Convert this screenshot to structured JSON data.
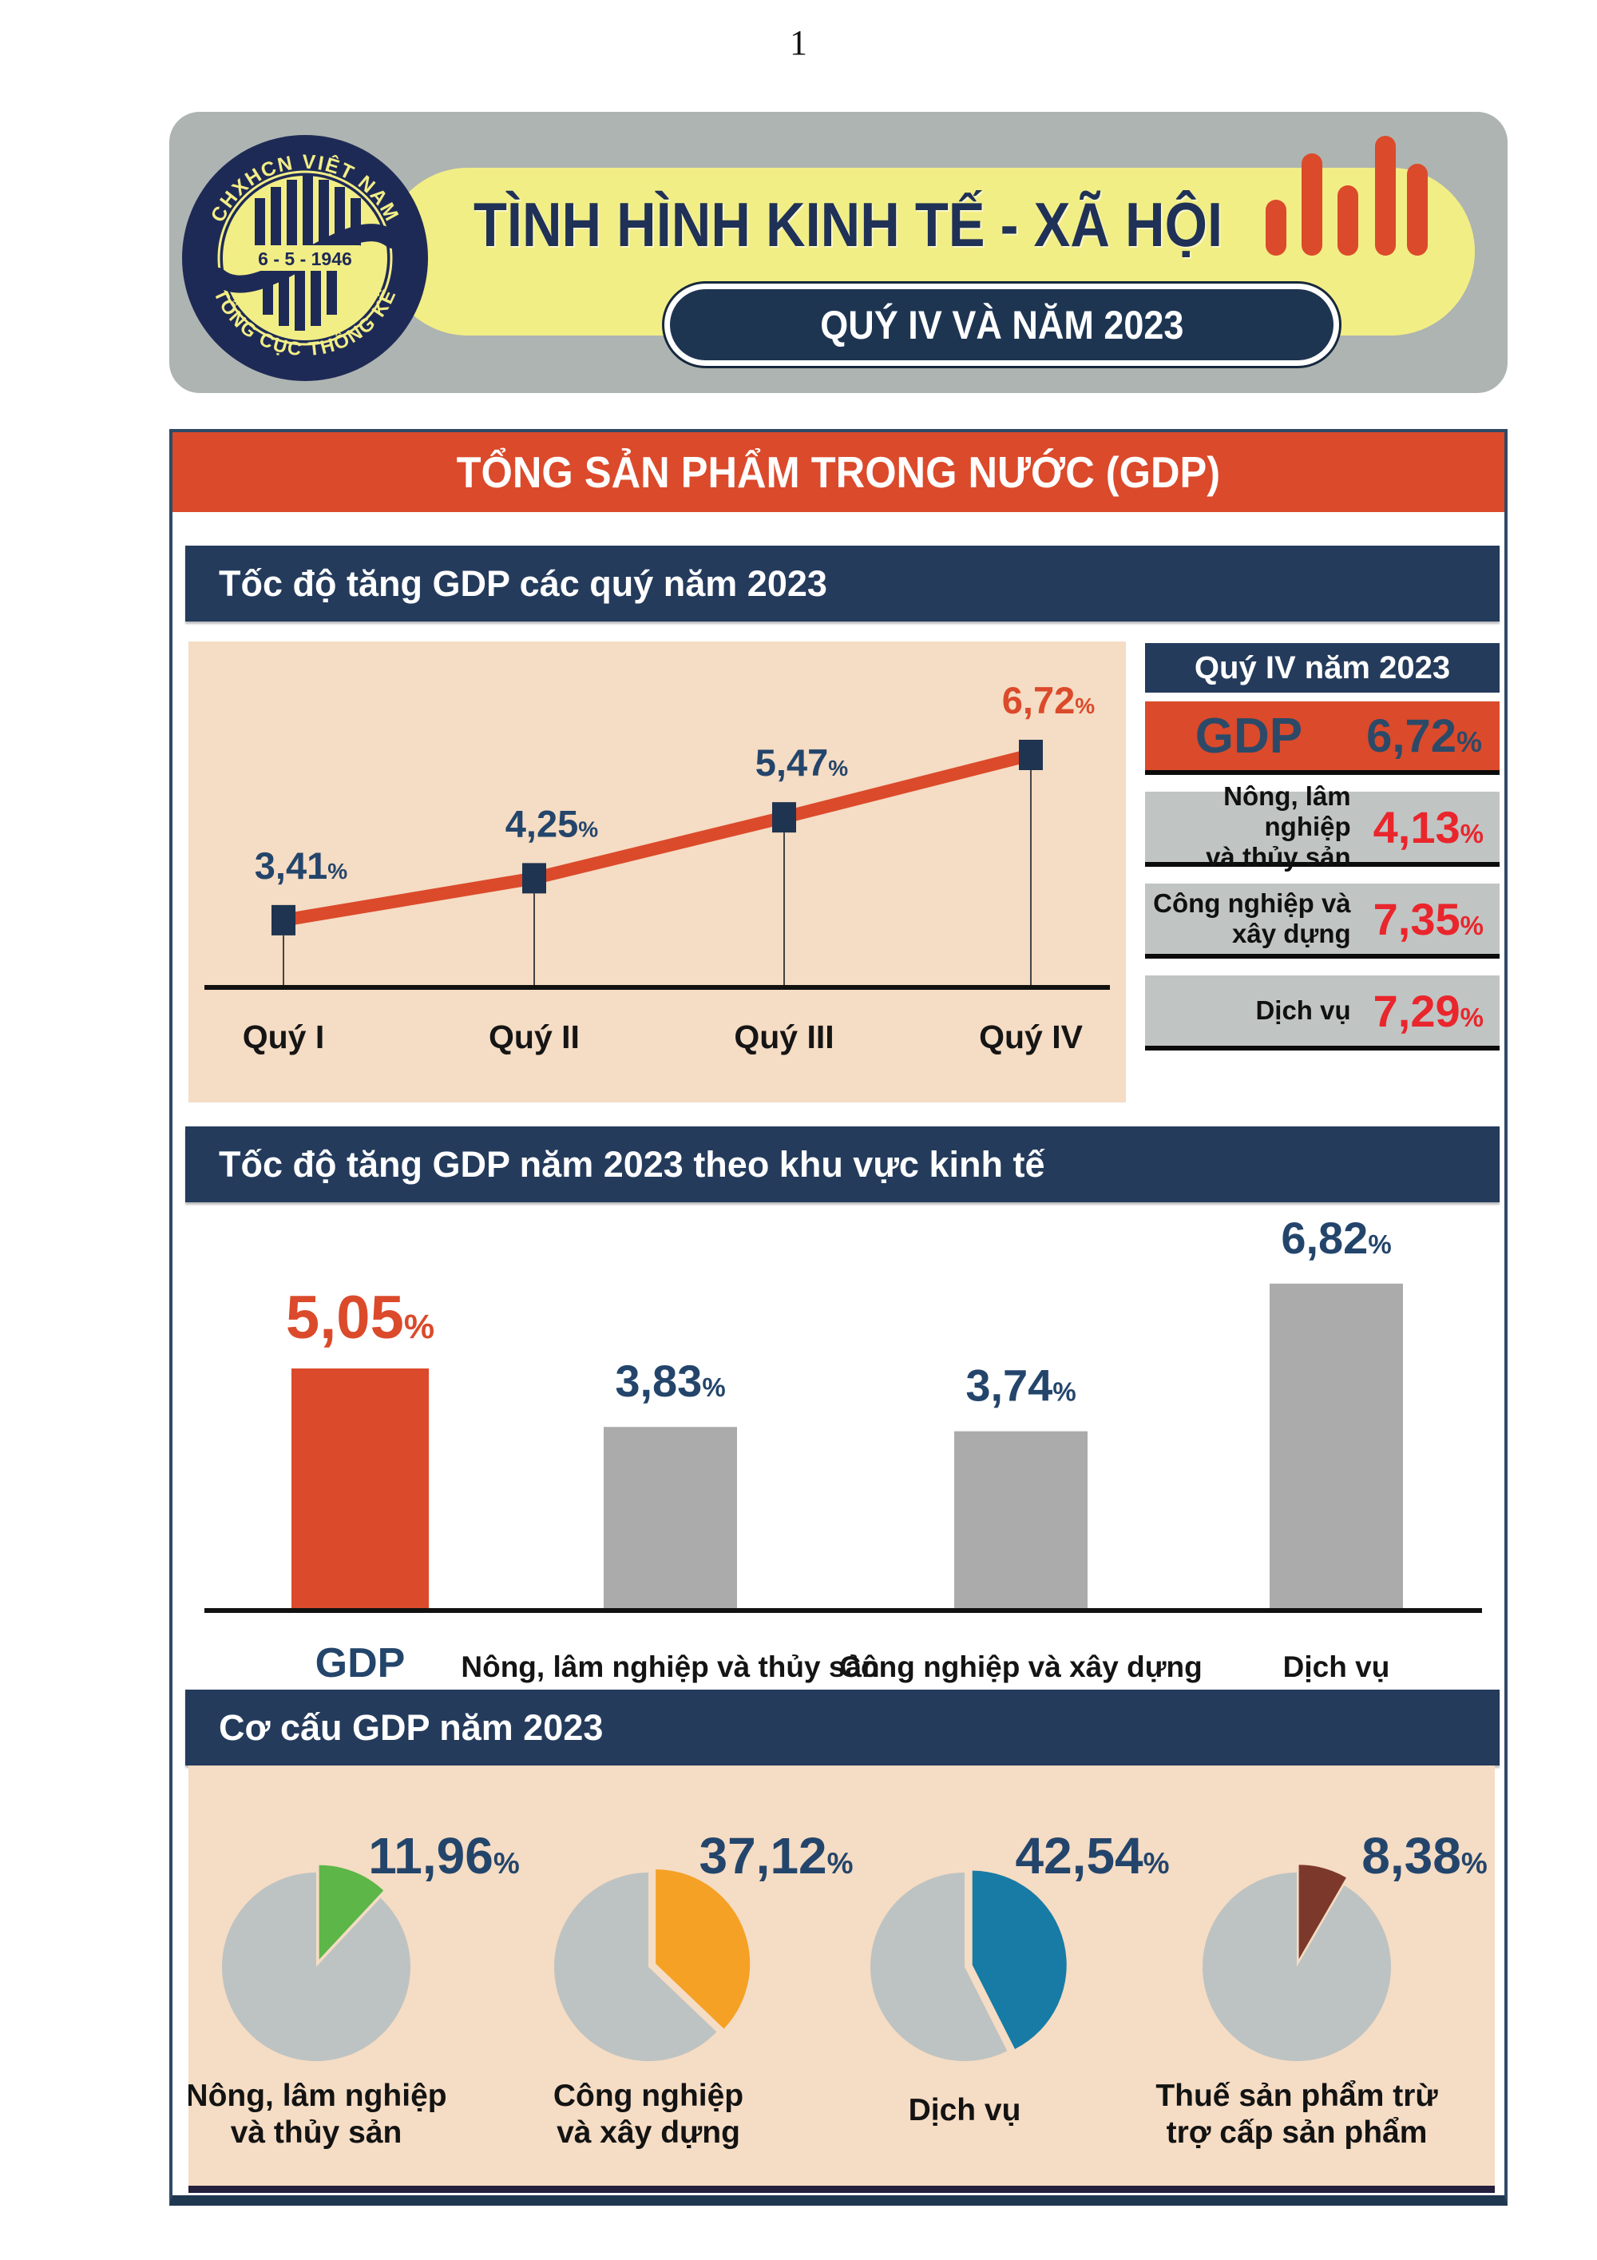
{
  "page": {
    "number": "1"
  },
  "header": {
    "logo": {
      "top_text": "CHXHCN VIỆT NAM",
      "center_text": "6 - 5 - 1946",
      "bottom_text": "TỔNG CỤC THỐNG KÊ"
    },
    "title": "TÌNH HÌNH KINH TẾ - XÃ HỘI",
    "pill": "QUÝ IV VÀ NĂM 2023"
  },
  "banner": {
    "title": "TỔNG SẢN PHẨM TRONG NƯỚC (GDP)"
  },
  "colors": {
    "navy": "#243B5C",
    "logo_navy": "#1E2A56",
    "text_navy": "#24456B",
    "accent_red": "#DB4A2B",
    "value_red": "#E9262C",
    "peach": "#F5DCC4",
    "card_gray": "#C0C5C4",
    "bar_gray": "#ABABAB",
    "pie_gray": "#BDC3C2",
    "yellow": "#F2EE86",
    "header_gray": "#AEB4B1",
    "green": "#5CB648",
    "orange": "#F5A125",
    "teal": "#177BA5",
    "brown": "#7C392B"
  },
  "sections": {
    "quarterly": {
      "header": "Tốc độ tăng GDP các quý năm 2023",
      "side_panel": {
        "header": "Quý IV năm 2023",
        "gdp": {
          "label": "GDP",
          "value": "6,72",
          "unit": "%"
        },
        "rows": [
          {
            "label_lines": [
              "Nông, lâm nghiệp",
              "và thủy sản"
            ],
            "value": "4,13",
            "unit": "%"
          },
          {
            "label_lines": [
              "Công nghiệp và",
              "xây dựng"
            ],
            "value": "7,35",
            "unit": "%"
          },
          {
            "label_lines": [
              "Dịch vụ"
            ],
            "value": "7,29",
            "unit": "%"
          }
        ]
      }
    },
    "by_sector": {
      "header": "Tốc độ tăng GDP năm 2023 theo khu vực kinh tế"
    },
    "structure": {
      "header": "Cơ cấu GDP năm 2023"
    }
  },
  "chart_data": [
    {
      "type": "line",
      "title": "Tốc độ tăng GDP các quý năm 2023",
      "categories": [
        "Quý I",
        "Quý II",
        "Quý III",
        "Quý IV"
      ],
      "values": [
        3.41,
        4.25,
        5.47,
        6.72
      ],
      "labels": [
        "3,41",
        "4,25",
        "5,47",
        "6,72"
      ],
      "unit": "%",
      "highlight_last": true,
      "ylabel": "",
      "xlabel": "",
      "grid": false
    },
    {
      "type": "bar",
      "title": "Tốc độ tăng GDP năm 2023 theo khu vực kinh tế",
      "categories": [
        "GDP",
        "Nông, lâm nghiệp và thủy sản",
        "Công nghiệp và xây dựng",
        "Dịch vụ"
      ],
      "values": [
        5.05,
        3.83,
        3.74,
        6.82
      ],
      "labels": [
        "5,05",
        "3,83",
        "3,74",
        "6,82"
      ],
      "unit": "%",
      "highlight_first": true,
      "ylabel": "",
      "xlabel": "",
      "grid": false
    },
    {
      "type": "pie",
      "title": "Cơ cấu GDP năm 2023",
      "unit": "%",
      "pies": [
        {
          "label_lines": [
            "Nông, lâm nghiệp",
            "và thủy sản"
          ],
          "value": 11.96,
          "label": "11,96",
          "color_key": "green"
        },
        {
          "label_lines": [
            "Công nghiệp",
            "và xây dựng"
          ],
          "value": 37.12,
          "label": "37,12",
          "color_key": "orange"
        },
        {
          "label_lines": [
            "Dịch vụ"
          ],
          "value": 42.54,
          "label": "42,54",
          "color_key": "teal"
        },
        {
          "label_lines": [
            "Thuế sản phẩm trừ",
            "trợ cấp sản phẩm"
          ],
          "value": 8.38,
          "label": "8,38",
          "color_key": "brown"
        }
      ]
    }
  ]
}
